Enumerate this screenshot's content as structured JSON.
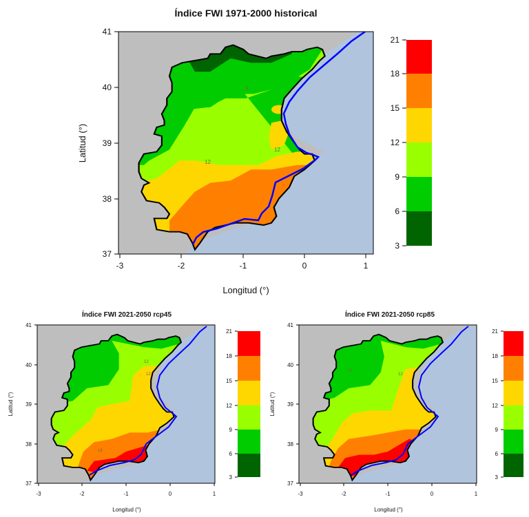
{
  "maps": [
    {
      "title": "Índice FWI 1971-2000 historical",
      "xlabel": "Longitud (°)",
      "ylabel": "Latitud (°)",
      "x_ticks": [
        "-3",
        "-2",
        "-1",
        "0",
        "1"
      ],
      "y_ticks": [
        "37",
        "38",
        "39",
        "40",
        "41"
      ],
      "contour_labels": [
        "9",
        "12",
        "12"
      ]
    },
    {
      "title": "Índice FWI 2021-2050 rcp45",
      "xlabel": "Longitud (°)",
      "ylabel": "Latitud (°)",
      "x_ticks": [
        "-3",
        "-2",
        "-1",
        "0",
        "1"
      ],
      "y_ticks": [
        "37",
        "38",
        "39",
        "40",
        "41"
      ],
      "contour_labels": [
        "12",
        "12",
        "18"
      ]
    },
    {
      "title": "Índice FWI 2021-2050 rcp85",
      "xlabel": "Longitud (°)",
      "ylabel": "Latitud (°)",
      "x_ticks": [
        "-3",
        "-2",
        "-1",
        "0",
        "1"
      ],
      "y_ticks": [
        "37",
        "38",
        "39",
        "40",
        "41"
      ],
      "contour_labels": [
        "12",
        "12"
      ]
    }
  ],
  "legend": {
    "levels": [
      "3",
      "6",
      "9",
      "12",
      "15",
      "18",
      "21"
    ],
    "colors": [
      "#006400",
      "#00cc00",
      "#99ff00",
      "#ffd700",
      "#ff8000",
      "#ff0000"
    ]
  },
  "colors": {
    "land_outside": "#bebebe",
    "sea": "#b0c4de",
    "coast": "#0000ff",
    "border": "#000000"
  }
}
